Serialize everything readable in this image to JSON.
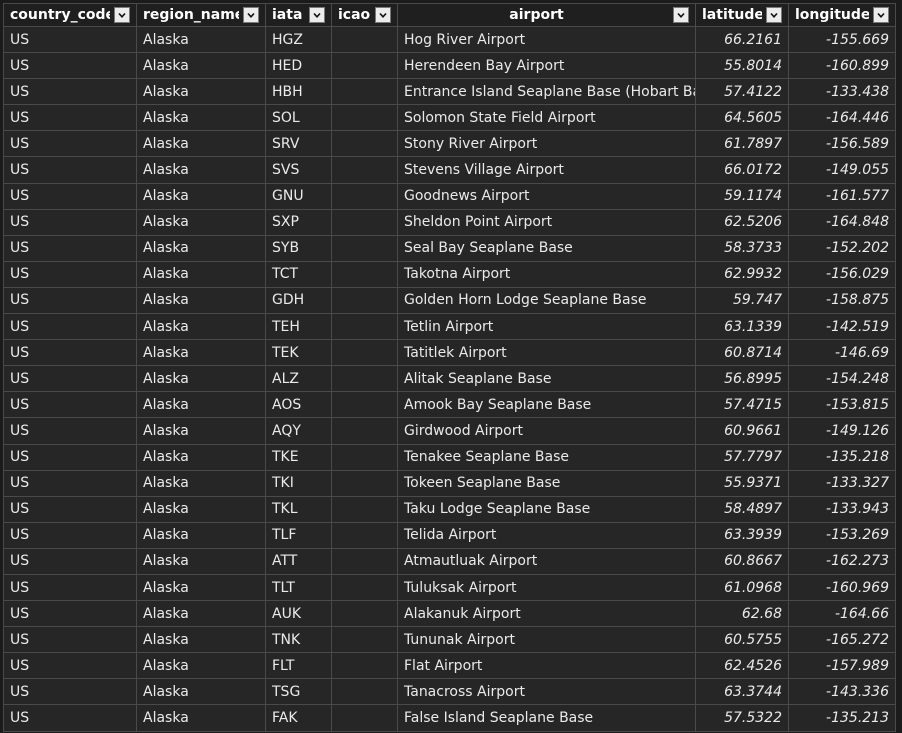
{
  "columns": [
    {
      "label": "country_code",
      "key": "country_code"
    },
    {
      "label": "region_name",
      "key": "region_name"
    },
    {
      "label": "iata",
      "key": "iata"
    },
    {
      "label": "icao",
      "key": "icao"
    },
    {
      "label": "airport",
      "key": "airport",
      "align": "center"
    },
    {
      "label": "latitude",
      "key": "latitude",
      "numeric": true
    },
    {
      "label": "longitude",
      "key": "longitude",
      "numeric": true
    }
  ],
  "rows": [
    {
      "country_code": "US",
      "region_name": "Alaska",
      "iata": "HGZ",
      "icao": "",
      "airport": "Hog River Airport",
      "latitude": "66.2161",
      "longitude": "-155.669"
    },
    {
      "country_code": "US",
      "region_name": "Alaska",
      "iata": "HED",
      "icao": "",
      "airport": "Herendeen Bay Airport",
      "latitude": "55.8014",
      "longitude": "-160.899"
    },
    {
      "country_code": "US",
      "region_name": "Alaska",
      "iata": "HBH",
      "icao": "",
      "airport": "Entrance Island Seaplane Base (Hobart Bay)",
      "latitude": "57.4122",
      "longitude": "-133.438"
    },
    {
      "country_code": "US",
      "region_name": "Alaska",
      "iata": "SOL",
      "icao": "",
      "airport": "Solomon State Field Airport",
      "latitude": "64.5605",
      "longitude": "-164.446"
    },
    {
      "country_code": "US",
      "region_name": "Alaska",
      "iata": "SRV",
      "icao": "",
      "airport": "Stony River Airport",
      "latitude": "61.7897",
      "longitude": "-156.589"
    },
    {
      "country_code": "US",
      "region_name": "Alaska",
      "iata": "SVS",
      "icao": "",
      "airport": "Stevens Village Airport",
      "latitude": "66.0172",
      "longitude": "-149.055"
    },
    {
      "country_code": "US",
      "region_name": "Alaska",
      "iata": "GNU",
      "icao": "",
      "airport": "Goodnews Airport",
      "latitude": "59.1174",
      "longitude": "-161.577"
    },
    {
      "country_code": "US",
      "region_name": "Alaska",
      "iata": "SXP",
      "icao": "",
      "airport": "Sheldon Point Airport",
      "latitude": "62.5206",
      "longitude": "-164.848"
    },
    {
      "country_code": "US",
      "region_name": "Alaska",
      "iata": "SYB",
      "icao": "",
      "airport": "Seal Bay Seaplane Base",
      "latitude": "58.3733",
      "longitude": "-152.202"
    },
    {
      "country_code": "US",
      "region_name": "Alaska",
      "iata": "TCT",
      "icao": "",
      "airport": "Takotna Airport",
      "latitude": "62.9932",
      "longitude": "-156.029"
    },
    {
      "country_code": "US",
      "region_name": "Alaska",
      "iata": "GDH",
      "icao": "",
      "airport": "Golden Horn Lodge Seaplane Base",
      "latitude": "59.747",
      "longitude": "-158.875"
    },
    {
      "country_code": "US",
      "region_name": "Alaska",
      "iata": "TEH",
      "icao": "",
      "airport": "Tetlin Airport",
      "latitude": "63.1339",
      "longitude": "-142.519"
    },
    {
      "country_code": "US",
      "region_name": "Alaska",
      "iata": "TEK",
      "icao": "",
      "airport": "Tatitlek Airport",
      "latitude": "60.8714",
      "longitude": "-146.69"
    },
    {
      "country_code": "US",
      "region_name": "Alaska",
      "iata": "ALZ",
      "icao": "",
      "airport": "Alitak Seaplane Base",
      "latitude": "56.8995",
      "longitude": "-154.248"
    },
    {
      "country_code": "US",
      "region_name": "Alaska",
      "iata": "AOS",
      "icao": "",
      "airport": "Amook Bay Seaplane Base",
      "latitude": "57.4715",
      "longitude": "-153.815"
    },
    {
      "country_code": "US",
      "region_name": "Alaska",
      "iata": "AQY",
      "icao": "",
      "airport": "Girdwood Airport",
      "latitude": "60.9661",
      "longitude": "-149.126"
    },
    {
      "country_code": "US",
      "region_name": "Alaska",
      "iata": "TKE",
      "icao": "",
      "airport": "Tenakee Seaplane Base",
      "latitude": "57.7797",
      "longitude": "-135.218"
    },
    {
      "country_code": "US",
      "region_name": "Alaska",
      "iata": "TKI",
      "icao": "",
      "airport": "Tokeen Seaplane Base",
      "latitude": "55.9371",
      "longitude": "-133.327"
    },
    {
      "country_code": "US",
      "region_name": "Alaska",
      "iata": "TKL",
      "icao": "",
      "airport": "Taku Lodge Seaplane Base",
      "latitude": "58.4897",
      "longitude": "-133.943"
    },
    {
      "country_code": "US",
      "region_name": "Alaska",
      "iata": "TLF",
      "icao": "",
      "airport": "Telida Airport",
      "latitude": "63.3939",
      "longitude": "-153.269"
    },
    {
      "country_code": "US",
      "region_name": "Alaska",
      "iata": "ATT",
      "icao": "",
      "airport": "Atmautluak Airport",
      "latitude": "60.8667",
      "longitude": "-162.273"
    },
    {
      "country_code": "US",
      "region_name": "Alaska",
      "iata": "TLT",
      "icao": "",
      "airport": "Tuluksak Airport",
      "latitude": "61.0968",
      "longitude": "-160.969"
    },
    {
      "country_code": "US",
      "region_name": "Alaska",
      "iata": "AUK",
      "icao": "",
      "airport": "Alakanuk Airport",
      "latitude": "62.68",
      "longitude": "-164.66"
    },
    {
      "country_code": "US",
      "region_name": "Alaska",
      "iata": "TNK",
      "icao": "",
      "airport": "Tununak Airport",
      "latitude": "60.5755",
      "longitude": "-165.272"
    },
    {
      "country_code": "US",
      "region_name": "Alaska",
      "iata": "FLT",
      "icao": "",
      "airport": "Flat Airport",
      "latitude": "62.4526",
      "longitude": "-157.989"
    },
    {
      "country_code": "US",
      "region_name": "Alaska",
      "iata": "TSG",
      "icao": "",
      "airport": "Tanacross Airport",
      "latitude": "63.3744",
      "longitude": "-143.336"
    },
    {
      "country_code": "US",
      "region_name": "Alaska",
      "iata": "FAK",
      "icao": "",
      "airport": "False Island Seaplane Base",
      "latitude": "57.5322",
      "longitude": "-135.213"
    }
  ],
  "icons": {
    "filter": "chevron-down-icon"
  },
  "colors": {
    "background": "#262626",
    "header_bg": "#1f1f1f",
    "grid_line": "#4a4a4a",
    "text": "#eaeaea"
  }
}
